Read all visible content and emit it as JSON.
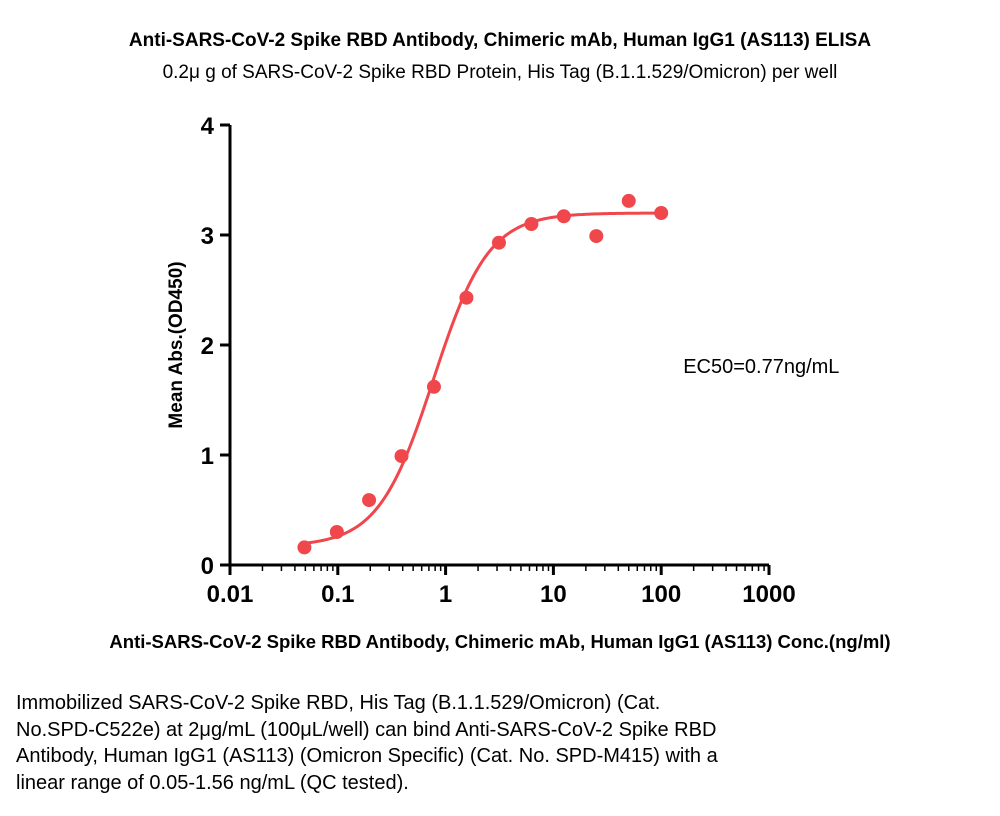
{
  "chart_data": {
    "type": "scatter",
    "title": "Anti-SARS-CoV-2 Spike RBD Antibody, Chimeric mAb, Human IgG1 (AS113)  ELISA",
    "subtitle": "0.2μ g of SARS-CoV-2 Spike RBD Protein, His Tag (B.1.1.529/Omicron)  per well",
    "xlabel": "Anti-SARS-CoV-2 Spike RBD Antibody, Chimeric mAb, Human IgG1 (AS113) Conc.(ng/ml)",
    "ylabel": "Mean Abs.(OD450)",
    "xscale": "log",
    "xlim": [
      0.01,
      1000
    ],
    "ylim": [
      0,
      4
    ],
    "x_ticks": [
      {
        "value": 0.01,
        "label": "0.01"
      },
      {
        "value": 0.1,
        "label": "0.1"
      },
      {
        "value": 1,
        "label": "1"
      },
      {
        "value": 10,
        "label": "10"
      },
      {
        "value": 100,
        "label": "100"
      },
      {
        "value": 1000,
        "label": "1000"
      }
    ],
    "y_ticks": [
      {
        "value": 0,
        "label": "0"
      },
      {
        "value": 1,
        "label": "1"
      },
      {
        "value": 2,
        "label": "2"
      },
      {
        "value": 3,
        "label": "3"
      },
      {
        "value": 4,
        "label": "4"
      }
    ],
    "grid": false,
    "color": "#f0474c",
    "series": [
      {
        "points": [
          {
            "x": 0.049,
            "y": 0.16
          },
          {
            "x": 0.098,
            "y": 0.3
          },
          {
            "x": 0.195,
            "y": 0.59
          },
          {
            "x": 0.39,
            "y": 0.99
          },
          {
            "x": 0.78,
            "y": 1.62
          },
          {
            "x": 1.56,
            "y": 2.43
          },
          {
            "x": 3.125,
            "y": 2.93
          },
          {
            "x": 6.25,
            "y": 3.1
          },
          {
            "x": 12.5,
            "y": 3.17
          },
          {
            "x": 25,
            "y": 2.99
          },
          {
            "x": 50,
            "y": 3.31
          },
          {
            "x": 100,
            "y": 3.2
          }
        ],
        "fit": {
          "model": "4PL",
          "bottom": 0.17,
          "top": 3.2,
          "ec50": 0.77,
          "hill": 1.7,
          "x_range": [
            0.049,
            100
          ]
        }
      }
    ],
    "annotations": [
      {
        "text": "EC50=0.77ng/mL",
        "x": 100,
        "y": 1.8
      }
    ]
  },
  "caption": {
    "lines": [
      "Immobilized SARS-CoV-2 Spike RBD, His Tag (B.1.1.529/Omicron) (Cat.",
      "No.SPD-C522e) at 2μg/mL (100μL/well) can bind Anti-SARS-CoV-2 Spike RBD",
      "Antibody, Human IgG1 (AS113) (Omicron Specific) (Cat. No. SPD-M415) with a",
      "linear range of 0.05-1.56 ng/mL (QC tested)."
    ]
  }
}
